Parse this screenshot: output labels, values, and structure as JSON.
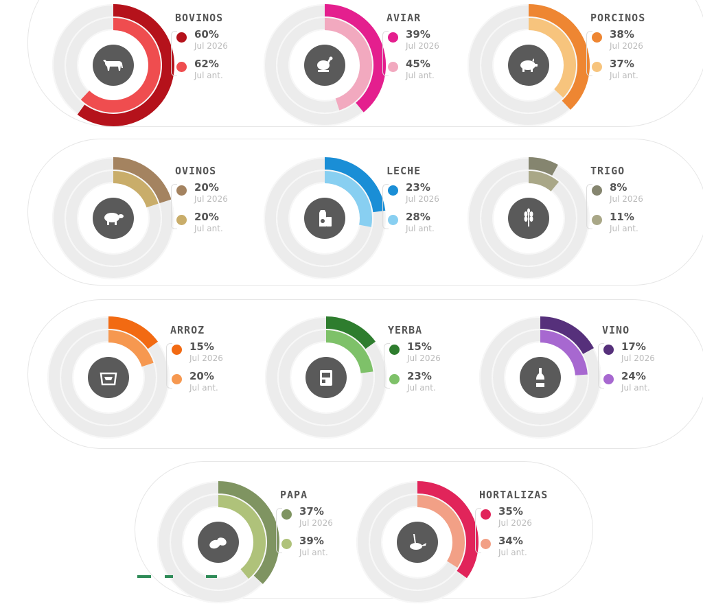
{
  "colors": {
    "bovinos": [
      "#b5121b",
      "#ef4d4f"
    ],
    "aviar": [
      "#e41f8e",
      "#f2a9bf"
    ],
    "porcinos": [
      "#ee8632",
      "#f7c47d"
    ],
    "ovinos": [
      "#a48360",
      "#c9ad6a"
    ],
    "leche": [
      "#1a8ed6",
      "#88cff1"
    ],
    "trigo": [
      "#85856f",
      "#a9a787"
    ],
    "arroz": [
      "#f26a12",
      "#f69850"
    ],
    "yerba": [
      "#2e7d2e",
      "#7ec169"
    ],
    "vino": [
      "#56307b",
      "#a768d0"
    ],
    "papa": [
      "#7f9461",
      "#afc27a"
    ],
    "hortalizas": [
      "#e1245a",
      "#f2a086"
    ]
  },
  "chart_data": {
    "type": "radial-bar",
    "items": [
      {
        "key": "bovinos",
        "label": "BOVINOS",
        "icon": "cow-icon",
        "series": [
          {
            "value": 60,
            "value_label": "60%",
            "period": "Jul 2026"
          },
          {
            "value": 62,
            "value_label": "62%",
            "period": "Jul ant."
          }
        ]
      },
      {
        "key": "aviar",
        "label": "AVIAR",
        "icon": "chicken-icon",
        "series": [
          {
            "value": 39,
            "value_label": "39%",
            "period": "Jul 2026"
          },
          {
            "value": 45,
            "value_label": "45%",
            "period": "Jul ant."
          }
        ]
      },
      {
        "key": "porcinos",
        "label": "PORCINOS",
        "icon": "pig-icon",
        "series": [
          {
            "value": 38,
            "value_label": "38%",
            "period": "Jul 2026"
          },
          {
            "value": 37,
            "value_label": "37%",
            "period": "Jul ant."
          }
        ]
      },
      {
        "key": "ovinos",
        "label": "OVINOS",
        "icon": "sheep-icon",
        "series": [
          {
            "value": 20,
            "value_label": "20%",
            "period": "Jul 2026"
          },
          {
            "value": 20,
            "value_label": "20%",
            "period": "Jul ant."
          }
        ]
      },
      {
        "key": "leche",
        "label": "LECHE",
        "icon": "milk-icon",
        "series": [
          {
            "value": 23,
            "value_label": "23%",
            "period": "Jul 2026"
          },
          {
            "value": 28,
            "value_label": "28%",
            "period": "Jul ant."
          }
        ]
      },
      {
        "key": "trigo",
        "label": "TRIGO",
        "icon": "wheat-icon",
        "series": [
          {
            "value": 8,
            "value_label": "8%",
            "period": "Jul 2026"
          },
          {
            "value": 11,
            "value_label": "11%",
            "period": "Jul ant."
          }
        ]
      },
      {
        "key": "arroz",
        "label": "ARROZ",
        "icon": "rice-bag-icon",
        "series": [
          {
            "value": 15,
            "value_label": "15%",
            "period": "Jul 2026"
          },
          {
            "value": 20,
            "value_label": "20%",
            "period": "Jul ant."
          }
        ]
      },
      {
        "key": "yerba",
        "label": "YERBA",
        "icon": "yerba-package-icon",
        "series": [
          {
            "value": 15,
            "value_label": "15%",
            "period": "Jul 2026"
          },
          {
            "value": 23,
            "value_label": "23%",
            "period": "Jul ant."
          }
        ]
      },
      {
        "key": "vino",
        "label": "VINO",
        "icon": "wine-bottle-icon",
        "series": [
          {
            "value": 17,
            "value_label": "17%",
            "period": "Jul 2026"
          },
          {
            "value": 24,
            "value_label": "24%",
            "period": "Jul ant."
          }
        ]
      },
      {
        "key": "papa",
        "label": "PAPA",
        "icon": "potato-icon",
        "series": [
          {
            "value": 37,
            "value_label": "37%",
            "period": "Jul 2026"
          },
          {
            "value": 39,
            "value_label": "39%",
            "period": "Jul ant."
          }
        ]
      },
      {
        "key": "hortalizas",
        "label": "HORTALIZAS",
        "icon": "vegetables-icon",
        "series": [
          {
            "value": 35,
            "value_label": "35%",
            "period": "Jul 2026"
          },
          {
            "value": 34,
            "value_label": "34%",
            "period": "Jul ant."
          }
        ]
      }
    ]
  }
}
